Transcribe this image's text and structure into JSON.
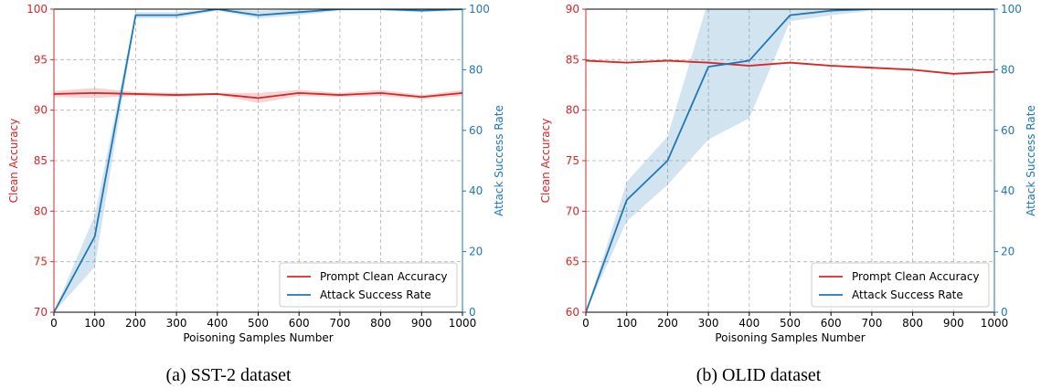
{
  "colors": {
    "red": "#d62728",
    "blue": "#1f77b4",
    "grid": "#b0b0b0"
  },
  "chart_data": [
    {
      "type": "line",
      "caption": "(a)  SST-2 dataset",
      "xlabel": "Poisoning Samples Number",
      "ylabel_left": "Clean Accuracy",
      "ylabel_right": "Attack Success Rate",
      "x": [
        0,
        100,
        200,
        300,
        400,
        500,
        600,
        700,
        800,
        900,
        1000
      ],
      "xlim": [
        0,
        1000
      ],
      "xticks": [
        0,
        100,
        200,
        300,
        400,
        500,
        600,
        700,
        800,
        900,
        1000
      ],
      "ylim_left": [
        70,
        100
      ],
      "yticks_left": [
        70,
        75,
        80,
        85,
        90,
        95,
        100
      ],
      "ylim_right": [
        0,
        100
      ],
      "yticks_right": [
        0,
        20,
        40,
        60,
        80,
        100
      ],
      "grid": true,
      "legend_position": "lower-right",
      "series": [
        {
          "name": "Prompt Clean Accuracy",
          "axis": "left",
          "color": "#d62728",
          "values": [
            91.6,
            91.7,
            91.6,
            91.5,
            91.6,
            91.2,
            91.7,
            91.5,
            91.7,
            91.3,
            91.7
          ],
          "lower": [
            91.3,
            91.2,
            91.4,
            91.3,
            91.5,
            90.7,
            91.4,
            91.3,
            91.4,
            91.1,
            91.4
          ],
          "upper": [
            91.9,
            92.2,
            91.8,
            91.7,
            91.7,
            91.7,
            92.0,
            91.7,
            92.0,
            91.5,
            92.0
          ]
        },
        {
          "name": "Attack Success Rate",
          "axis": "right",
          "color": "#1f77b4",
          "values": [
            0,
            25,
            98,
            98,
            100,
            98,
            99,
            100,
            100,
            99.5,
            100
          ],
          "lower": [
            0,
            15,
            97,
            97,
            99.5,
            97,
            98,
            99.5,
            99.5,
            99,
            99.5
          ],
          "upper": [
            0,
            32,
            99,
            99,
            100,
            99.5,
            100,
            100,
            100,
            100,
            100
          ]
        }
      ]
    },
    {
      "type": "line",
      "caption": "(b)  OLID dataset",
      "xlabel": "Poisoning Samples Number",
      "ylabel_left": "Clean Accuracy",
      "ylabel_right": "Attack Success Rate",
      "x": [
        0,
        100,
        200,
        300,
        400,
        500,
        600,
        700,
        800,
        900,
        1000
      ],
      "xlim": [
        0,
        1000
      ],
      "xticks": [
        0,
        100,
        200,
        300,
        400,
        500,
        600,
        700,
        800,
        900,
        1000
      ],
      "ylim_left": [
        60,
        90
      ],
      "yticks_left": [
        60,
        65,
        70,
        75,
        80,
        85,
        90
      ],
      "ylim_right": [
        0,
        100
      ],
      "yticks_right": [
        0,
        20,
        40,
        60,
        80,
        100
      ],
      "grid": true,
      "legend_position": "lower-right",
      "series": [
        {
          "name": "Prompt Clean Accuracy",
          "axis": "left",
          "color": "#d62728",
          "values": [
            84.9,
            84.7,
            84.9,
            84.7,
            84.4,
            84.7,
            84.4,
            84.2,
            84.0,
            83.6,
            83.8
          ],
          "lower": [
            84.8,
            84.6,
            84.8,
            84.6,
            84.3,
            84.6,
            84.3,
            84.1,
            83.9,
            83.5,
            83.7
          ],
          "upper": [
            85.0,
            84.8,
            85.0,
            84.8,
            84.5,
            84.8,
            84.5,
            84.3,
            84.1,
            83.7,
            83.9
          ]
        },
        {
          "name": "Attack Success Rate",
          "axis": "right",
          "color": "#1f77b4",
          "values": [
            0,
            37,
            50,
            81,
            83,
            98,
            99.5,
            100,
            100,
            100,
            100
          ],
          "lower": [
            0,
            30,
            42,
            57,
            64,
            96,
            98,
            99.5,
            99.5,
            99.5,
            99.5
          ],
          "upper": [
            0,
            43,
            58,
            103,
            103,
            101,
            101,
            101,
            100.5,
            100.5,
            100.5
          ]
        }
      ]
    }
  ]
}
